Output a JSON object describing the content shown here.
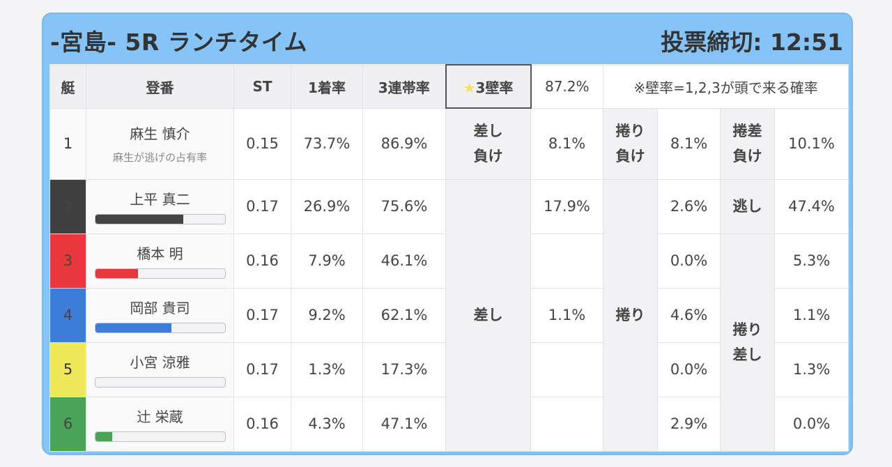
{
  "header": {
    "title": "-宮島- 5R ランチタイム",
    "deadline": "投票締切: 12:51"
  },
  "columns": {
    "boat": "艇",
    "racer": "登番",
    "st": "ST",
    "win": "1着率",
    "top3": "3連帯率",
    "wall_label": "★3壁率",
    "wall_star": "★",
    "wall_text": "3壁率",
    "wall_value": "87.2%",
    "note": "※壁率=1,2,3が頭で来る確率"
  },
  "racers": [
    {
      "boat": "1",
      "name": "麻生 慎介",
      "sub": "麻生が逃げの占有率",
      "st": "0.15",
      "win": "73.7%",
      "top3": "86.9%"
    },
    {
      "boat": "2",
      "name": "上平 真二",
      "st": "0.17",
      "win": "26.9%",
      "top3": "75.6%",
      "bar": 0.68,
      "bar_color": "#444444"
    },
    {
      "boat": "3",
      "name": "橋本 明",
      "st": "0.16",
      "win": "7.9%",
      "top3": "46.1%",
      "bar": 0.33,
      "bar_color": "#e8383d"
    },
    {
      "boat": "4",
      "name": "岡部 貴司",
      "st": "0.17",
      "win": "9.2%",
      "top3": "62.1%",
      "bar": 0.59,
      "bar_color": "#3b7dd8"
    },
    {
      "boat": "5",
      "name": "小宮 涼雅",
      "st": "0.17",
      "win": "1.3%",
      "top3": "17.3%",
      "bar": 0.0,
      "bar_color": "#efe85a"
    },
    {
      "boat": "6",
      "name": "辻 栄蔵",
      "st": "0.16",
      "win": "4.3%",
      "top3": "47.1%",
      "bar": 0.13,
      "bar_color": "#4aa457"
    }
  ],
  "outcomes": {
    "sashi_make": {
      "line1": "差し",
      "line2": "負け",
      "value": "8.1%"
    },
    "makuri_make": {
      "line1": "捲り",
      "line2": "負け",
      "value": "8.1%"
    },
    "makurisashi_make": {
      "line1": "捲差",
      "line2": "負け",
      "value": "10.1%"
    },
    "nige": {
      "label": "逃し",
      "value": "47.4%"
    },
    "sashi": {
      "label": "差し",
      "values": [
        "17.9%",
        "1.1%"
      ]
    },
    "makuri": {
      "label": "捲り",
      "values": [
        "2.6%",
        "0.0%",
        "4.6%",
        "0.0%",
        "2.9%"
      ]
    },
    "makurisashi": {
      "line1": "捲り",
      "line2": "差し",
      "values": [
        "5.3%",
        "1.1%",
        "1.3%",
        "0.0%"
      ]
    }
  }
}
